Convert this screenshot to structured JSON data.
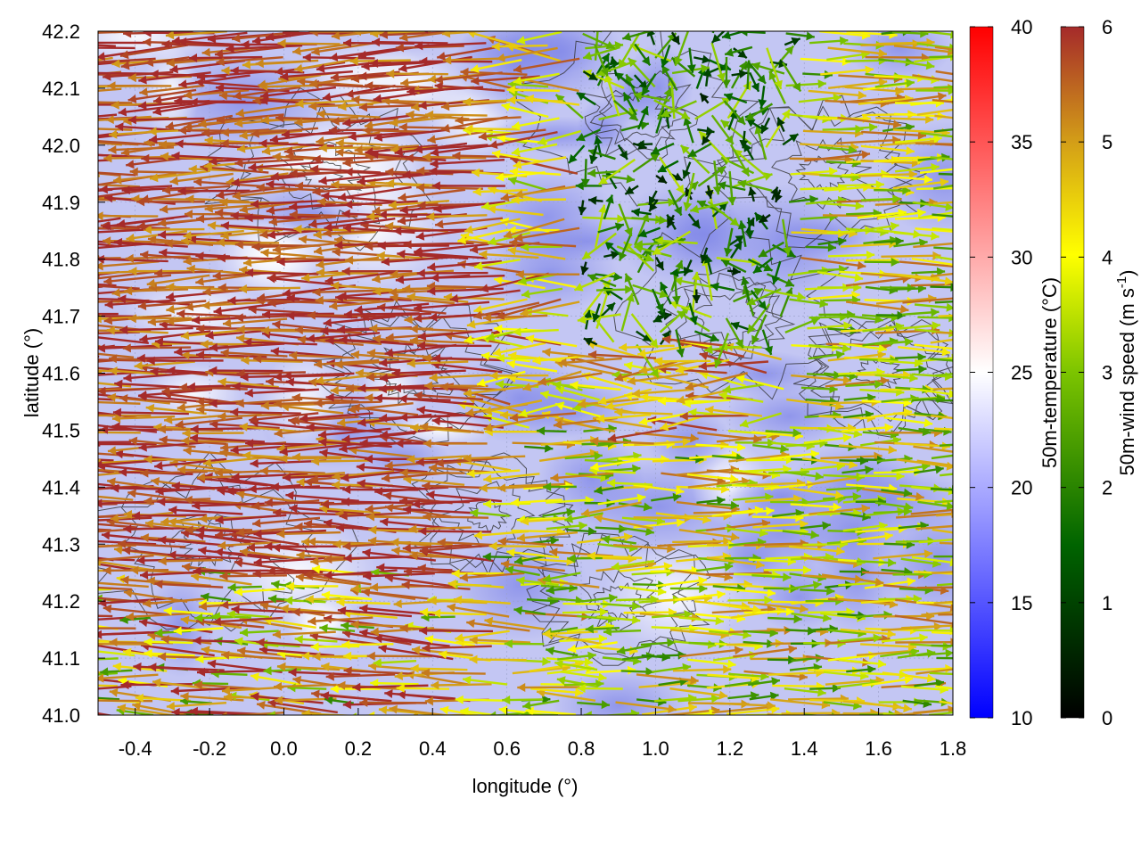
{
  "chart_data": {
    "type": "vector-field",
    "xlabel": "longitude (°)",
    "ylabel": "latitude (°)",
    "xlim": [
      -0.5,
      1.8
    ],
    "ylim": [
      41.0,
      42.2
    ],
    "xticks": [
      "-0.4",
      "-0.2",
      "0.0",
      "0.2",
      "0.4",
      "0.6",
      "0.8",
      "1.0",
      "1.2",
      "1.4",
      "1.6",
      "1.8"
    ],
    "xtick_values": [
      -0.4,
      -0.2,
      0.0,
      0.2,
      0.4,
      0.6,
      0.8,
      1.0,
      1.2,
      1.4,
      1.6,
      1.8
    ],
    "yticks": [
      "41.0",
      "41.1",
      "41.2",
      "41.3",
      "41.4",
      "41.5",
      "41.6",
      "41.7",
      "41.8",
      "41.9",
      "42.0",
      "42.1",
      "42.2"
    ],
    "ytick_values": [
      41.0,
      41.1,
      41.2,
      41.3,
      41.4,
      41.5,
      41.6,
      41.7,
      41.8,
      41.9,
      42.0,
      42.1,
      42.2
    ],
    "background_field": "50m-temperature (°C), shaded",
    "vector_field": "50m-wind (m s-1), arrows colored by speed",
    "colorbars": [
      {
        "name": "temperature",
        "label": "50m-temperature (°C)",
        "range": [
          10,
          40
        ],
        "ticks": [
          "10",
          "15",
          "20",
          "25",
          "30",
          "35",
          "40"
        ],
        "tick_values": [
          10,
          15,
          20,
          25,
          30,
          35,
          40
        ],
        "colors": [
          "#0000ff",
          "#ffffff",
          "#ff0000"
        ]
      },
      {
        "name": "wind-speed",
        "label_main": "50m-wind speed (m s",
        "label_sup": "-1",
        "label_end": ")",
        "range": [
          0,
          6
        ],
        "ticks": [
          "0",
          "1",
          "2",
          "3",
          "4",
          "5",
          "6"
        ],
        "tick_values": [
          0,
          1,
          2,
          3,
          4,
          5,
          6
        ],
        "colors": [
          "#000000",
          "#006400",
          "#7cc400",
          "#ffff00",
          "#d4a017",
          "#a52a2a"
        ]
      }
    ],
    "wind_regions": [
      {
        "area": "west (lon < 0.6)",
        "direction": "from east (westward flow)",
        "speed": 6
      },
      {
        "area": "central highlands (lon 0.8–1.3, lat 41.7–42.2)",
        "direction": "variable",
        "speed": 1.5
      },
      {
        "area": "east / south-east (lon > 1.0, lat < 41.5)",
        "direction": "from west (eastward flow)",
        "speed": 4
      }
    ]
  }
}
